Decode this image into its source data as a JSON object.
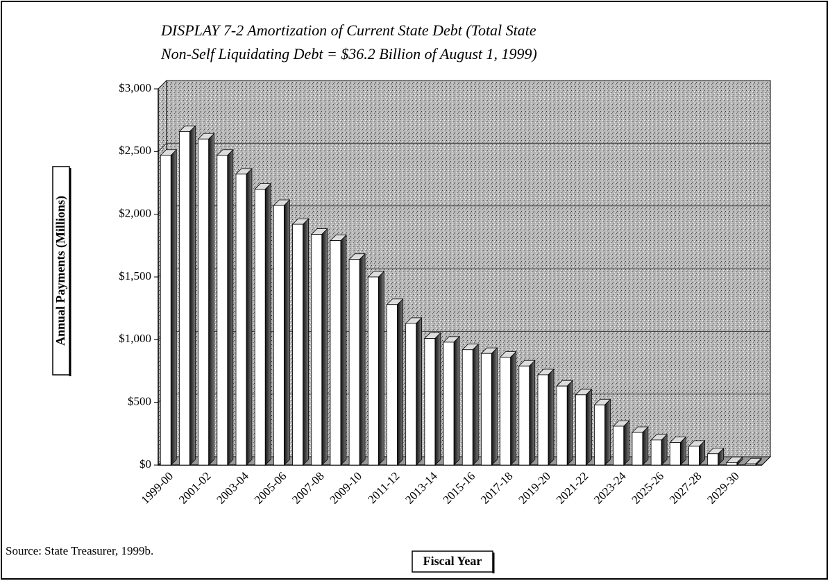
{
  "chart_data": {
    "type": "bar3d",
    "title": [
      "DISPLAY 7-2 Amortization of Current State Debt (Total State",
      "Non-Self Liquidating Debt = $36.2 Billion of August 1, 1999)"
    ],
    "y_label": "Annual Payments (Millions)",
    "x_label": "Fiscal Year",
    "source": "Source: State Treasurer, 1999b.",
    "categories": [
      "1999-00",
      null,
      "2001-02",
      null,
      "2003-04",
      null,
      "2005-06",
      null,
      "2007-08",
      null,
      "2009-10",
      null,
      "2011-12",
      null,
      "2013-14",
      null,
      "2015-16",
      null,
      "2017-18",
      null,
      "2019-20",
      null,
      "2021-22",
      null,
      "2023-24",
      null,
      "2025-26",
      null,
      "2027-28",
      null,
      "2029-30",
      null
    ],
    "values": [
      2470,
      2660,
      2600,
      2470,
      2320,
      2200,
      2070,
      1920,
      1840,
      1790,
      1640,
      1500,
      1280,
      1130,
      1010,
      980,
      920,
      890,
      860,
      790,
      720,
      630,
      560,
      480,
      310,
      260,
      200,
      180,
      150,
      90,
      20,
      10
    ],
    "ylim": [
      0,
      3000
    ],
    "yticks": [
      {
        "value": 0,
        "label": "$0"
      },
      {
        "value": 500,
        "label": "$500"
      },
      {
        "value": 1000,
        "label": "$1,000"
      },
      {
        "value": 1500,
        "label": "$1,500"
      },
      {
        "value": 2000,
        "label": "$2,000"
      },
      {
        "value": 2500,
        "label": "$2,500"
      },
      {
        "value": 3000,
        "label": "$3,000"
      }
    ],
    "grid": true
  }
}
